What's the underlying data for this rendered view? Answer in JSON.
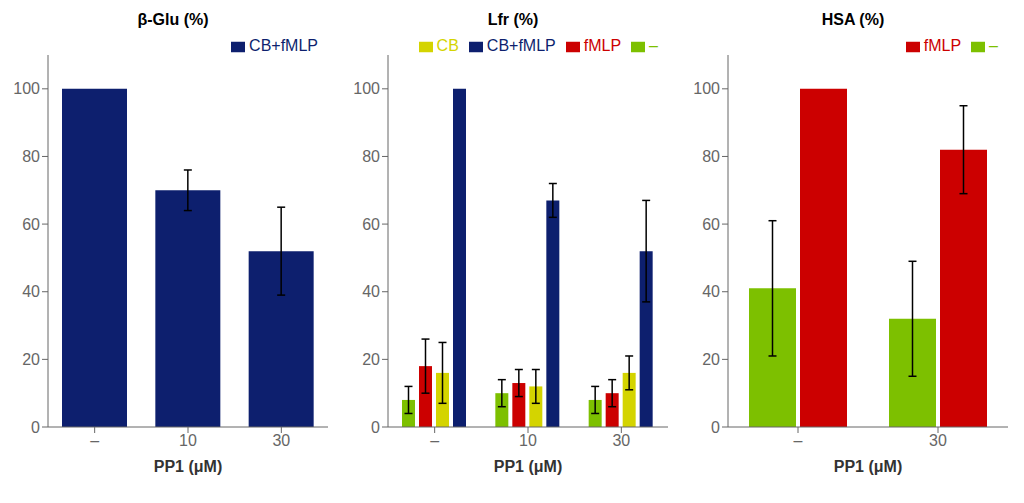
{
  "chart_data": [
    {
      "type": "bar",
      "title": "β-Glu (%)",
      "xlabel": "PP1 (μM)",
      "categories": [
        "–",
        "10",
        "30"
      ],
      "series": [
        {
          "name": "CB+fMLP",
          "color": "#0d1f6e",
          "values": [
            100,
            70,
            52
          ],
          "errors": [
            0,
            6,
            13
          ]
        }
      ],
      "ylim": [
        0,
        110
      ],
      "yticks": [
        0,
        20,
        40,
        60,
        80,
        100
      ],
      "grid": false,
      "legend": "upper right"
    },
    {
      "type": "bar",
      "title": "Lfr (%)",
      "xlabel": "PP1 (μM)",
      "categories": [
        "–",
        "10",
        "30"
      ],
      "series": [
        {
          "name": "–",
          "color": "#7dc000",
          "values": [
            8,
            10,
            8
          ],
          "errors": [
            4,
            4,
            4
          ]
        },
        {
          "name": "fMLP",
          "color": "#cc0000",
          "values": [
            18,
            13,
            10
          ],
          "errors": [
            8,
            4,
            4
          ]
        },
        {
          "name": "CB",
          "color": "#d4d400",
          "values": [
            16,
            12,
            16
          ],
          "errors": [
            9,
            5,
            5
          ]
        },
        {
          "name": "CB+fMLP",
          "color": "#0d1f6e",
          "values": [
            100,
            67,
            52
          ],
          "errors": [
            0,
            5,
            15
          ]
        }
      ],
      "ylim": [
        0,
        110
      ],
      "yticks": [
        0,
        20,
        40,
        60,
        80,
        100
      ],
      "grid": false,
      "legend": "upper right"
    },
    {
      "type": "bar",
      "title": "HSA (%)",
      "xlabel": "PP1 (μM)",
      "categories": [
        "–",
        "30"
      ],
      "series": [
        {
          "name": "–",
          "color": "#7dc000",
          "values": [
            41,
            32
          ],
          "errors": [
            20,
            17
          ]
        },
        {
          "name": "fMLP",
          "color": "#cc0000",
          "values": [
            100,
            82
          ],
          "errors": [
            0,
            13
          ]
        }
      ],
      "ylim": [
        0,
        110
      ],
      "yticks": [
        0,
        20,
        40,
        60,
        80,
        100
      ],
      "grid": false,
      "legend": "upper right"
    }
  ]
}
